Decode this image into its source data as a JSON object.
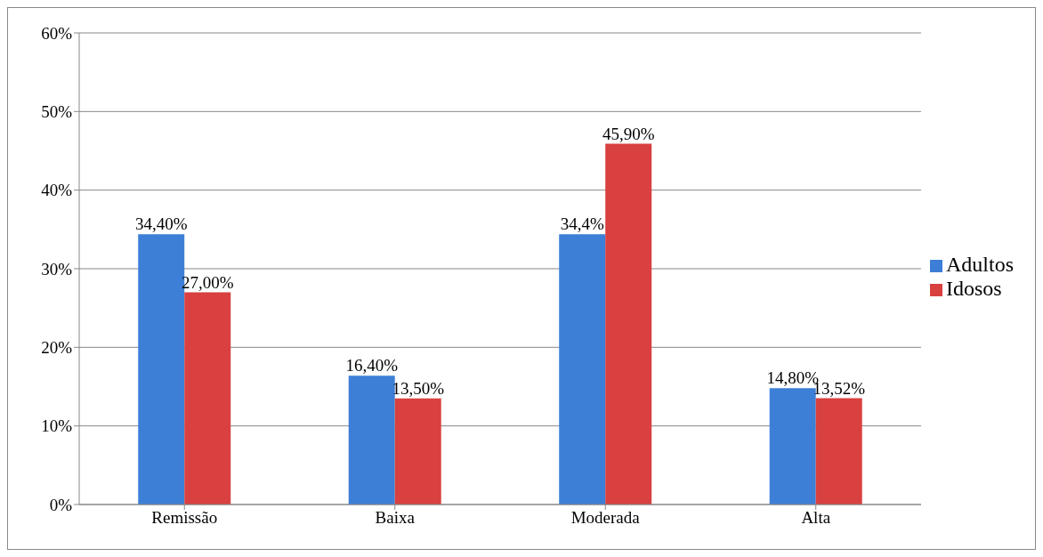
{
  "chart_data": {
    "type": "bar",
    "categories": [
      "Remissão",
      "Baixa",
      "Moderada",
      "Alta"
    ],
    "series": [
      {
        "name": "Adultos",
        "color": "#3d7fd6",
        "values": [
          34.4,
          16.4,
          34.4,
          14.8
        ],
        "value_labels": [
          "34,40%",
          "16,40%",
          "34,4%",
          "14,80%"
        ]
      },
      {
        "name": "Idosos",
        "color": "#d94040",
        "values": [
          27.0,
          13.5,
          45.9,
          13.52
        ],
        "value_labels": [
          "27,00%",
          "13,50%",
          "45,90%",
          "13,52%"
        ]
      }
    ],
    "ylim": [
      0,
      60
    ],
    "yticks": [
      {
        "value": 0,
        "label": "0%"
      },
      {
        "value": 10,
        "label": "10%"
      },
      {
        "value": 20,
        "label": "20%"
      },
      {
        "value": 30,
        "label": "30%"
      },
      {
        "value": 40,
        "label": "40%"
      },
      {
        "value": 50,
        "label": "50%"
      },
      {
        "value": 60,
        "label": "60%"
      }
    ],
    "grid": "y",
    "legend": "right"
  }
}
